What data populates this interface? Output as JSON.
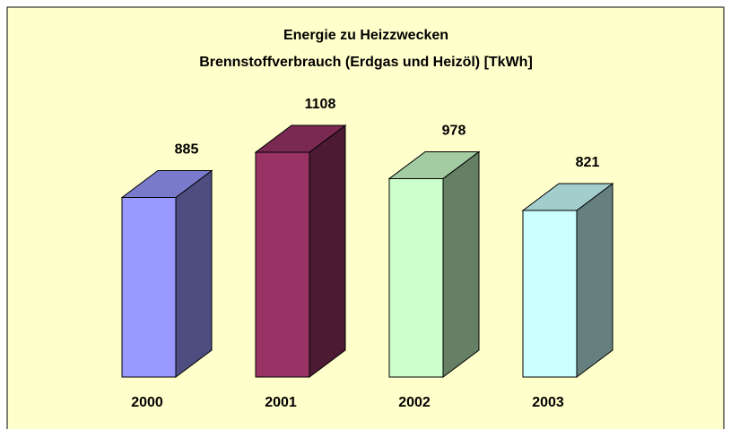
{
  "chart_data": {
    "type": "bar3d",
    "title": "Energie zu Heizzwecken",
    "subtitle": "Brennstoffverbrauch (Erdgas und Heizöl) [TkWh]",
    "categories": [
      "2000",
      "2001",
      "2002",
      "2003"
    ],
    "values": [
      885,
      1108,
      978,
      821
    ],
    "colors": [
      "#9999ff",
      "#993366",
      "#ccffcc",
      "#ccffff"
    ]
  }
}
